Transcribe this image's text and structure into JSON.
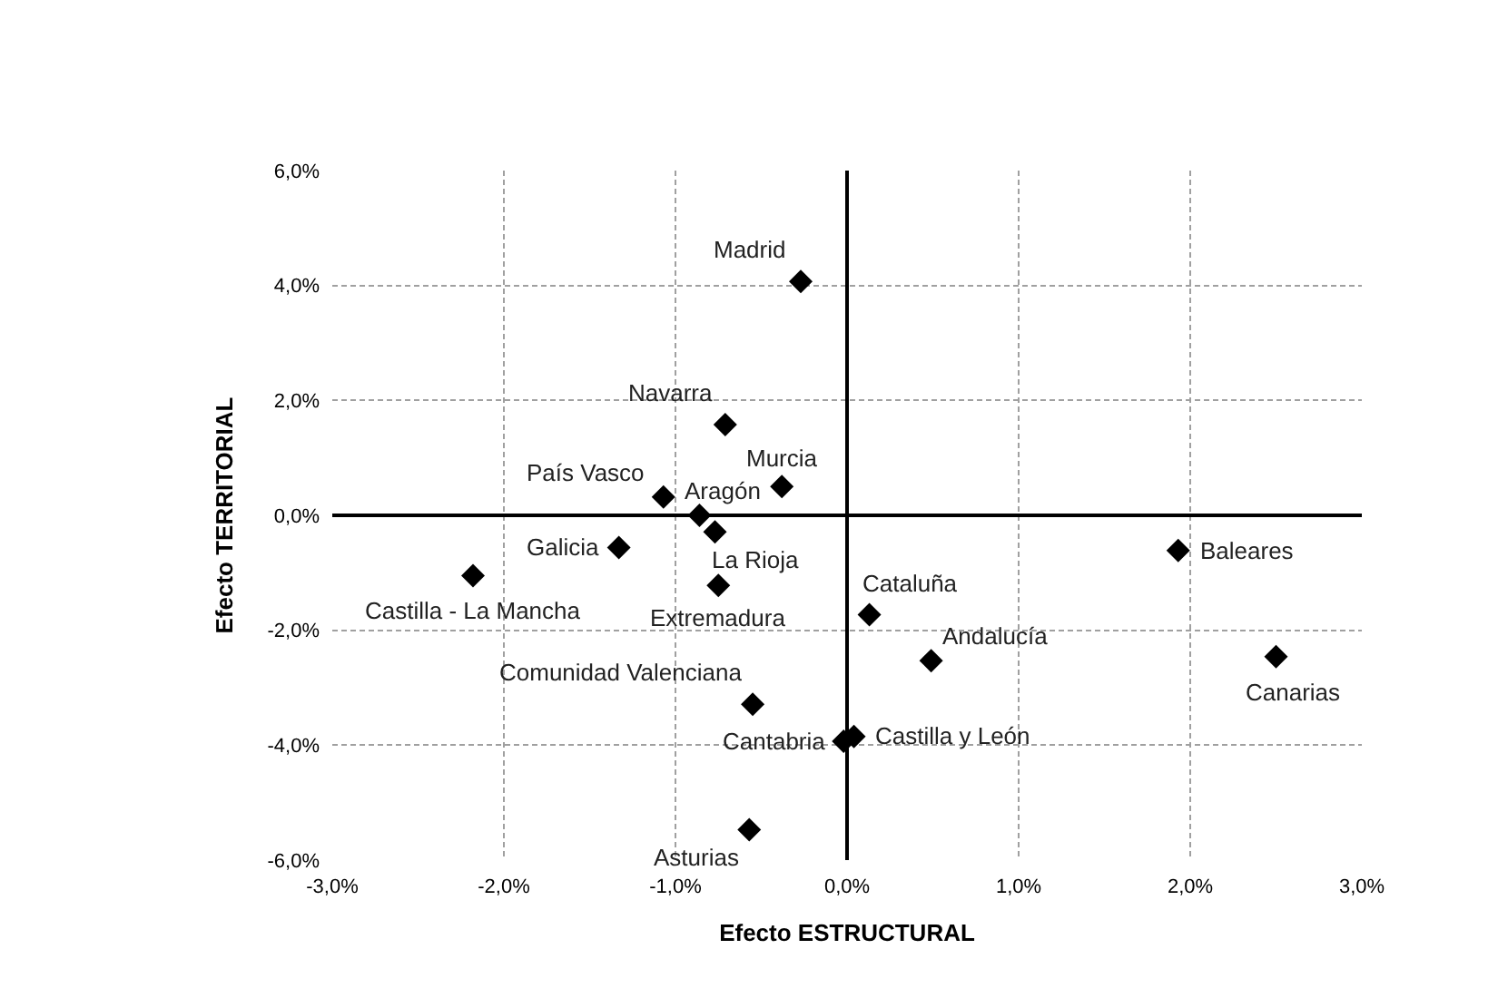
{
  "chart_data": {
    "type": "scatter",
    "xlabel": "Efecto ESTRUCTURAL",
    "ylabel": "Efecto TERRITORIAL",
    "marker": "diamond",
    "grid": true,
    "legend": false,
    "xlim": [
      -3,
      3
    ],
    "ylim": [
      -6,
      6
    ],
    "xticks": [
      {
        "value": -3,
        "label": "-3,0%"
      },
      {
        "value": -2,
        "label": "-2,0%"
      },
      {
        "value": -1,
        "label": "-1,0%"
      },
      {
        "value": 0,
        "label": "0,0%"
      },
      {
        "value": 1,
        "label": "1,0%"
      },
      {
        "value": 2,
        "label": "2,0%"
      },
      {
        "value": 3,
        "label": "3,0%"
      }
    ],
    "yticks": [
      {
        "value": -6,
        "label": "-6,0%"
      },
      {
        "value": -4,
        "label": "-4,0%"
      },
      {
        "value": -2,
        "label": "-2,0%"
      },
      {
        "value": 0,
        "label": "0,0%"
      },
      {
        "value": 2,
        "label": "2,0%"
      },
      {
        "value": 4,
        "label": "4,0%"
      },
      {
        "value": 6,
        "label": "6,0%"
      }
    ],
    "series": [
      {
        "color": "#000000",
        "x": [
          -0.27,
          -0.71,
          -0.38,
          -1.07,
          -0.86,
          -0.77,
          -1.33,
          -2.18,
          -0.75,
          0.13,
          -0.55,
          -0.02,
          0.04,
          -0.57,
          1.93,
          0.49,
          2.5
        ],
        "values": [
          4.07,
          1.58,
          0.5,
          0.32,
          0.0,
          -0.29,
          -0.56,
          -1.05,
          -1.22,
          -1.73,
          -3.29,
          -3.93,
          -3.85,
          -5.47,
          -0.61,
          -2.53,
          -2.46
        ]
      }
    ],
    "annotations": [
      {
        "text": "Madrid",
        "x": -0.27,
        "y": 4.07
      },
      {
        "text": "Navarra",
        "x": -0.71,
        "y": 1.58
      },
      {
        "text": "Murcia",
        "x": -0.38,
        "y": 0.5
      },
      {
        "text": "País Vasco",
        "x": -1.07,
        "y": 0.32
      },
      {
        "text": "Aragón",
        "x": -0.86,
        "y": 0.0
      },
      {
        "text": "La Rioja",
        "x": -0.77,
        "y": -0.29
      },
      {
        "text": "Galicia",
        "x": -1.33,
        "y": -0.56
      },
      {
        "text": "Castilla - La Mancha",
        "x": -2.18,
        "y": -1.05
      },
      {
        "text": "Extremadura",
        "x": -0.75,
        "y": -1.22
      },
      {
        "text": "Cataluña",
        "x": 0.13,
        "y": -1.73
      },
      {
        "text": "Comunidad Valenciana",
        "x": -0.55,
        "y": -3.29
      },
      {
        "text": "Cantabria",
        "x": -0.02,
        "y": -3.93
      },
      {
        "text": "Castilla y León",
        "x": 0.04,
        "y": -3.85
      },
      {
        "text": "Asturias",
        "x": -0.57,
        "y": -5.47
      },
      {
        "text": "Baleares",
        "x": 1.93,
        "y": -0.61
      },
      {
        "text": "Andalucía",
        "x": 0.49,
        "y": -2.53
      },
      {
        "text": "Canarias",
        "x": 2.5,
        "y": -2.46
      }
    ]
  }
}
